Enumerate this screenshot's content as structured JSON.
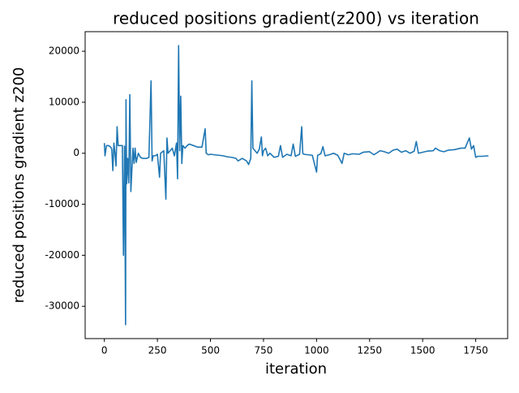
{
  "chart_data": {
    "type": "line",
    "title": "reduced positions gradient(z200) vs iteration",
    "x_label": "iteration",
    "y_label": "reduced positions gradient z200",
    "x": [
      0,
      3,
      10,
      20,
      30,
      35,
      40,
      45,
      50,
      55,
      60,
      65,
      70,
      85,
      90,
      95,
      100,
      102,
      105,
      110,
      115,
      120,
      125,
      130,
      135,
      140,
      145,
      150,
      160,
      170,
      180,
      190,
      200,
      210,
      220,
      225,
      230,
      240,
      250,
      260,
      265,
      280,
      290,
      295,
      300,
      320,
      330,
      340,
      345,
      350,
      355,
      360,
      365,
      370,
      380,
      390,
      400,
      420,
      440,
      460,
      475,
      480,
      490,
      500,
      520,
      540,
      560,
      580,
      600,
      620,
      630,
      650,
      670,
      680,
      690,
      695,
      700,
      710,
      720,
      730,
      740,
      745,
      750,
      760,
      770,
      780,
      800,
      820,
      830,
      840,
      860,
      880,
      890,
      900,
      920,
      930,
      935,
      940,
      960,
      980,
      1000,
      1005,
      1020,
      1030,
      1040,
      1060,
      1080,
      1100,
      1120,
      1130,
      1150,
      1170,
      1200,
      1220,
      1250,
      1270,
      1300,
      1320,
      1340,
      1360,
      1380,
      1400,
      1420,
      1440,
      1460,
      1470,
      1480,
      1500,
      1520,
      1550,
      1560,
      1580,
      1600,
      1620,
      1650,
      1680,
      1700,
      1710,
      1720,
      1730,
      1740,
      1750,
      1760,
      1780,
      1810
    ],
    "series": [
      {
        "color": "#1f77b4",
        "values": [
          2000,
          -500,
          1500,
          1500,
          1200,
          800,
          -3400,
          2000,
          0,
          -2500,
          5200,
          1500,
          1500,
          1500,
          -20000,
          1400,
          -33600,
          10500,
          -6000,
          -1000,
          -5800,
          11500,
          -7500,
          -3000,
          1000,
          -2000,
          1000,
          -1800,
          0,
          -800,
          -1000,
          -1000,
          -1000,
          -800,
          14200,
          -1500,
          -500,
          -500,
          -200,
          -4700,
          0,
          500,
          -9000,
          3000,
          0,
          1000,
          -500,
          2000,
          -5000,
          21100,
          500,
          11200,
          -2000,
          1500,
          1000,
          1500,
          1800,
          1500,
          1200,
          1200,
          4800,
          0,
          -300,
          -200,
          -300,
          -400,
          -500,
          -700,
          -800,
          -1000,
          -1500,
          -1000,
          -1500,
          -2200,
          -1000,
          14200,
          1000,
          500,
          0,
          800,
          3200,
          -500,
          500,
          1000,
          -500,
          0,
          -800,
          -600,
          1500,
          -800,
          -200,
          -500,
          1800,
          -600,
          -200,
          5200,
          0,
          -200,
          -300,
          -400,
          -3700,
          -400,
          -100,
          1300,
          -500,
          -300,
          0,
          -400,
          -2000,
          0,
          -300,
          -100,
          -200,
          200,
          300,
          -300,
          500,
          300,
          0,
          600,
          800,
          200,
          500,
          0,
          400,
          2300,
          0,
          200,
          400,
          500,
          1000,
          500,
          300,
          600,
          700,
          1000,
          1000,
          2000,
          3000,
          800,
          1500,
          -800,
          -600,
          -600,
          -500
        ]
      }
    ],
    "xlim": [
      -90.5,
      1900.5
    ],
    "ylim": [
      -36335,
      23835
    ],
    "xticks": [
      0,
      250,
      500,
      750,
      1000,
      1250,
      1500,
      1750
    ],
    "yticks": [
      -30000,
      -20000,
      -10000,
      0,
      10000,
      20000
    ]
  }
}
